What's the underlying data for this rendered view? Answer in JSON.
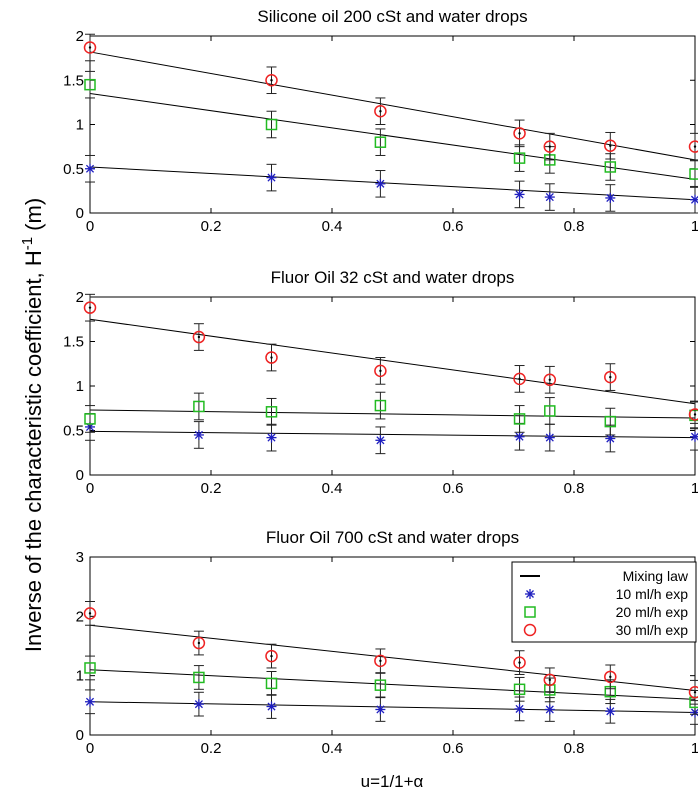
{
  "figure": {
    "ylabel": "Inverse of the characteristic coefficient, H",
    "ylabel_sup": "-1",
    "ylabel_unit": " (m)",
    "xlabel": "u=1/1+α"
  },
  "legend": {
    "items": [
      {
        "label": "Mixing law",
        "marker": "line",
        "color": "#000000"
      },
      {
        "label": "10 ml/h exp",
        "marker": "star",
        "color": "#1f1fbf"
      },
      {
        "label": "20 ml/h exp",
        "marker": "square",
        "color": "#22bb22"
      },
      {
        "label": "30 ml/h exp",
        "marker": "circle",
        "color": "#ee2222"
      }
    ]
  },
  "chart_data": [
    {
      "type": "scatter",
      "title": "Silicone oil 200 cSt and water drops",
      "xlim": [
        0,
        1
      ],
      "ylim": [
        0,
        2
      ],
      "xticks": [
        "0",
        "0.2",
        "0.4",
        "0.6",
        "0.8",
        "1"
      ],
      "yticks": [
        "0",
        "0.5",
        "1",
        "1.5",
        "2"
      ],
      "x": [
        0,
        0.3,
        0.48,
        0.71,
        0.76,
        0.86,
        1
      ],
      "series": [
        {
          "name": "10 ml/h exp",
          "marker": "star",
          "color": "#1f1fbf",
          "values": [
            0.5,
            0.4,
            0.33,
            0.21,
            0.18,
            0.17,
            0.15
          ],
          "error": 0.15,
          "fit": [
            0.52,
            0.15
          ]
        },
        {
          "name": "20 ml/h exp",
          "marker": "square",
          "color": "#22bb22",
          "values": [
            1.45,
            1.0,
            0.8,
            0.62,
            0.6,
            0.52,
            0.44
          ],
          "error": 0.15,
          "fit": [
            1.35,
            0.38
          ]
        },
        {
          "name": "30 ml/h exp",
          "marker": "circle",
          "color": "#ee2222",
          "values": [
            1.87,
            1.5,
            1.15,
            0.9,
            0.75,
            0.76,
            0.75
          ],
          "error": 0.15,
          "fit": [
            1.82,
            0.6
          ]
        }
      ]
    },
    {
      "type": "scatter",
      "title": "Fluor Oil 32 cSt and water drops",
      "xlim": [
        0,
        1
      ],
      "ylim": [
        0,
        2
      ],
      "xticks": [
        "0",
        "0.2",
        "0.4",
        "0.6",
        "0.8",
        "1"
      ],
      "yticks": [
        "0",
        "0.5",
        "1",
        "1.5",
        "2"
      ],
      "x": [
        0,
        0.18,
        0.3,
        0.48,
        0.71,
        0.76,
        0.86,
        1
      ],
      "series": [
        {
          "name": "10 ml/h exp",
          "marker": "star",
          "color": "#1f1fbf",
          "values": [
            0.54,
            0.45,
            0.42,
            0.39,
            0.43,
            0.42,
            0.41,
            0.43
          ],
          "error": 0.15,
          "fit": [
            0.49,
            0.42
          ]
        },
        {
          "name": "20 ml/h exp",
          "marker": "square",
          "color": "#22bb22",
          "values": [
            0.63,
            0.77,
            0.71,
            0.78,
            0.63,
            0.72,
            0.6,
            0.67
          ],
          "error": 0.15,
          "fit": [
            0.73,
            0.64
          ]
        },
        {
          "name": "30 ml/h exp",
          "marker": "circle",
          "color": "#ee2222",
          "values": [
            1.88,
            1.55,
            1.32,
            1.17,
            1.08,
            1.07,
            1.1,
            0.68
          ],
          "error": 0.15,
          "fit": [
            1.75,
            0.8
          ]
        }
      ]
    },
    {
      "type": "scatter",
      "title": "Fluor Oil 700 cSt and water drops",
      "xlim": [
        0,
        1
      ],
      "ylim": [
        0,
        3
      ],
      "xticks": [
        "0",
        "0.2",
        "0.4",
        "0.6",
        "0.8",
        "1"
      ],
      "yticks": [
        "0",
        "1",
        "2",
        "3"
      ],
      "x": [
        0,
        0.18,
        0.3,
        0.48,
        0.71,
        0.76,
        0.86,
        1
      ],
      "series": [
        {
          "name": "10 ml/h exp",
          "marker": "star",
          "color": "#1f1fbf",
          "values": [
            0.56,
            0.52,
            0.48,
            0.43,
            0.44,
            0.43,
            0.4,
            0.38
          ],
          "error": 0.2,
          "fit": [
            0.56,
            0.38
          ]
        },
        {
          "name": "20 ml/h exp",
          "marker": "square",
          "color": "#22bb22",
          "values": [
            1.13,
            0.97,
            0.87,
            0.84,
            0.77,
            0.76,
            0.73,
            0.55
          ],
          "error": 0.2,
          "fit": [
            1.1,
            0.6
          ]
        },
        {
          "name": "30 ml/h exp",
          "marker": "circle",
          "color": "#ee2222",
          "values": [
            2.05,
            1.55,
            1.33,
            1.25,
            1.22,
            0.93,
            0.98,
            0.72
          ],
          "error": 0.2,
          "fit": [
            1.85,
            0.75
          ]
        }
      ]
    }
  ]
}
